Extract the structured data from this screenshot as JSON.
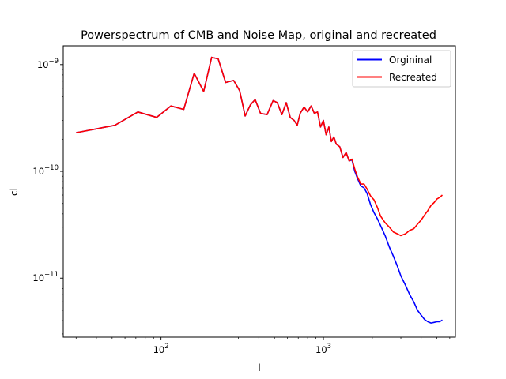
{
  "chart_data": {
    "type": "line",
    "title": "Powerspectrum of CMB and Noise Map, original and recreated",
    "xlabel": "l",
    "ylabel": "cl",
    "xscale": "log",
    "yscale": "log",
    "xlim": [
      25,
      6500
    ],
    "ylim": [
      2.8e-12,
      1.5e-09
    ],
    "xticks": [
      {
        "value": 100,
        "base": "10",
        "exp": "2"
      },
      {
        "value": 1000,
        "base": "10",
        "exp": "3"
      }
    ],
    "yticks": [
      {
        "value": 1e-11,
        "base": "10",
        "exp": "−11"
      },
      {
        "value": 1e-10,
        "base": "10",
        "exp": "−10"
      },
      {
        "value": 1e-09,
        "base": "10",
        "exp": "−9"
      }
    ],
    "grid": false,
    "legend_position": "top-right",
    "series": [
      {
        "name": "Orgininal",
        "color": "#0000ff",
        "points": [
          [
            30,
            2.3e-10
          ],
          [
            52,
            2.7e-10
          ],
          [
            72,
            3.6e-10
          ],
          [
            94,
            3.2e-10
          ],
          [
            115,
            4.1e-10
          ],
          [
            138,
            3.8e-10
          ],
          [
            160,
            8.3e-10
          ],
          [
            183,
            5.6e-10
          ],
          [
            205,
            1.17e-09
          ],
          [
            225,
            1.13e-09
          ],
          [
            250,
            6.8e-10
          ],
          [
            280,
            7.1e-10
          ],
          [
            305,
            5.7e-10
          ],
          [
            330,
            3.3e-10
          ],
          [
            355,
            4.2e-10
          ],
          [
            380,
            4.7e-10
          ],
          [
            410,
            3.5e-10
          ],
          [
            450,
            3.4e-10
          ],
          [
            490,
            4.6e-10
          ],
          [
            520,
            4.4e-10
          ],
          [
            555,
            3.4e-10
          ],
          [
            590,
            4.4e-10
          ],
          [
            625,
            3.2e-10
          ],
          [
            660,
            3e-10
          ],
          [
            690,
            2.7e-10
          ],
          [
            720,
            3.5e-10
          ],
          [
            760,
            4e-10
          ],
          [
            800,
            3.6e-10
          ],
          [
            840,
            4.1e-10
          ],
          [
            880,
            3.5e-10
          ],
          [
            920,
            3.6e-10
          ],
          [
            960,
            2.6e-10
          ],
          [
            1000,
            3e-10
          ],
          [
            1040,
            2.2e-10
          ],
          [
            1080,
            2.6e-10
          ],
          [
            1120,
            1.9e-10
          ],
          [
            1160,
            2.1e-10
          ],
          [
            1200,
            1.8e-10
          ],
          [
            1260,
            1.7e-10
          ],
          [
            1320,
            1.35e-10
          ],
          [
            1380,
            1.5e-10
          ],
          [
            1440,
            1.25e-10
          ],
          [
            1500,
            1.28e-10
          ],
          [
            1560,
            1e-10
          ],
          [
            1620,
            8.6e-11
          ],
          [
            1700,
            7.3e-11
          ],
          [
            1780,
            7e-11
          ],
          [
            1860,
            6.2e-11
          ],
          [
            1950,
            4.9e-11
          ],
          [
            2050,
            4.1e-11
          ],
          [
            2150,
            3.6e-11
          ],
          [
            2250,
            3.1e-11
          ],
          [
            2400,
            2.5e-11
          ],
          [
            2550,
            1.95e-11
          ],
          [
            2700,
            1.6e-11
          ],
          [
            2850,
            1.3e-11
          ],
          [
            3000,
            1.05e-11
          ],
          [
            3200,
            8.6e-12
          ],
          [
            3400,
            7e-12
          ],
          [
            3600,
            6e-12
          ],
          [
            3800,
            5e-12
          ],
          [
            4000,
            4.5e-12
          ],
          [
            4200,
            4.1e-12
          ],
          [
            4400,
            3.9e-12
          ],
          [
            4600,
            3.8e-12
          ],
          [
            4800,
            3.85e-12
          ],
          [
            5000,
            3.9e-12
          ],
          [
            5200,
            3.9e-12
          ],
          [
            5400,
            4.05e-12
          ]
        ]
      },
      {
        "name": "Recreated",
        "color": "#ff0000",
        "points": [
          [
            30,
            2.3e-10
          ],
          [
            52,
            2.7e-10
          ],
          [
            72,
            3.6e-10
          ],
          [
            94,
            3.2e-10
          ],
          [
            115,
            4.1e-10
          ],
          [
            138,
            3.8e-10
          ],
          [
            160,
            8.3e-10
          ],
          [
            183,
            5.6e-10
          ],
          [
            205,
            1.17e-09
          ],
          [
            225,
            1.13e-09
          ],
          [
            250,
            6.8e-10
          ],
          [
            280,
            7.1e-10
          ],
          [
            305,
            5.7e-10
          ],
          [
            330,
            3.3e-10
          ],
          [
            355,
            4.2e-10
          ],
          [
            380,
            4.7e-10
          ],
          [
            410,
            3.5e-10
          ],
          [
            450,
            3.4e-10
          ],
          [
            490,
            4.6e-10
          ],
          [
            520,
            4.4e-10
          ],
          [
            555,
            3.4e-10
          ],
          [
            590,
            4.4e-10
          ],
          [
            625,
            3.2e-10
          ],
          [
            660,
            3e-10
          ],
          [
            690,
            2.7e-10
          ],
          [
            720,
            3.5e-10
          ],
          [
            760,
            4e-10
          ],
          [
            800,
            3.6e-10
          ],
          [
            840,
            4.1e-10
          ],
          [
            880,
            3.5e-10
          ],
          [
            920,
            3.6e-10
          ],
          [
            960,
            2.6e-10
          ],
          [
            1000,
            3e-10
          ],
          [
            1040,
            2.2e-10
          ],
          [
            1080,
            2.6e-10
          ],
          [
            1120,
            1.9e-10
          ],
          [
            1160,
            2.1e-10
          ],
          [
            1200,
            1.8e-10
          ],
          [
            1260,
            1.7e-10
          ],
          [
            1320,
            1.35e-10
          ],
          [
            1380,
            1.5e-10
          ],
          [
            1440,
            1.25e-10
          ],
          [
            1500,
            1.3e-10
          ],
          [
            1560,
            1.05e-10
          ],
          [
            1620,
            8.9e-11
          ],
          [
            1700,
            7.6e-11
          ],
          [
            1780,
            7.6e-11
          ],
          [
            1860,
            6.8e-11
          ],
          [
            1950,
            5.9e-11
          ],
          [
            2050,
            5.4e-11
          ],
          [
            2150,
            4.6e-11
          ],
          [
            2250,
            3.8e-11
          ],
          [
            2400,
            3.3e-11
          ],
          [
            2550,
            3e-11
          ],
          [
            2700,
            2.7e-11
          ],
          [
            2850,
            2.6e-11
          ],
          [
            3000,
            2.5e-11
          ],
          [
            3200,
            2.6e-11
          ],
          [
            3400,
            2.8e-11
          ],
          [
            3600,
            2.9e-11
          ],
          [
            3800,
            3.2e-11
          ],
          [
            4000,
            3.5e-11
          ],
          [
            4200,
            3.9e-11
          ],
          [
            4400,
            4.3e-11
          ],
          [
            4600,
            4.8e-11
          ],
          [
            4800,
            5.1e-11
          ],
          [
            5000,
            5.5e-11
          ],
          [
            5200,
            5.7e-11
          ],
          [
            5400,
            6e-11
          ]
        ]
      }
    ]
  }
}
